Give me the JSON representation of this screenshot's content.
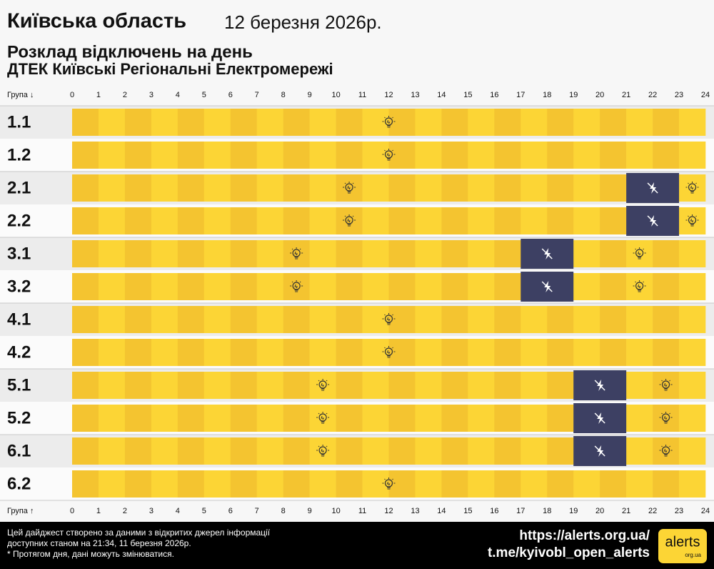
{
  "chart_data": {
    "type": "schedule",
    "title": "Київська область",
    "date": "12 березня 2026р.",
    "subtitle": "Розклад відключень на день",
    "provider": "ДТЕК Київські Регіональні Електромережі",
    "axis_label_top": "Група ↓",
    "axis_label_bottom": "Група ↑",
    "xlim": [
      0,
      24
    ],
    "xticks": [
      0,
      1,
      2,
      3,
      4,
      5,
      6,
      7,
      8,
      9,
      10,
      11,
      12,
      13,
      14,
      15,
      16,
      17,
      18,
      19,
      20,
      21,
      22,
      23,
      24
    ],
    "categories": [
      "1.1",
      "1.2",
      "2.1",
      "2.2",
      "3.1",
      "3.2",
      "4.1",
      "4.2",
      "5.1",
      "5.2",
      "6.1",
      "6.2"
    ],
    "outages": [
      [],
      [],
      [
        {
          "start": 21,
          "end": 23
        }
      ],
      [
        {
          "start": 21,
          "end": 23
        }
      ],
      [
        {
          "start": 17,
          "end": 19
        }
      ],
      [
        {
          "start": 17,
          "end": 19
        }
      ],
      [],
      [],
      [
        {
          "start": 19,
          "end": 21
        }
      ],
      [
        {
          "start": 19,
          "end": 21
        }
      ],
      [
        {
          "start": 19,
          "end": 21
        }
      ],
      []
    ],
    "on_color": "#fcd535",
    "on_color_alt": "#f4c430",
    "off_color": "#3d4063"
  },
  "footer": {
    "notes": [
      "Цей дайджест створено за даними з відкритих джерел інформації",
      "доступних станом на 21:34, 11 березня 2026р.",
      "* Протягом дня, дані можуть змінюватися."
    ],
    "links": [
      "https://alerts.org.ua/",
      "t.me/kyivobl_open_alerts"
    ],
    "logo": "alerts",
    "logo_sub": "org.ua"
  }
}
